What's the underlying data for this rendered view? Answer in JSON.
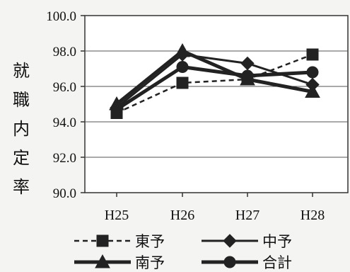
{
  "chart_data": {
    "type": "line",
    "ylabel": "就職内定率",
    "categories": [
      "H25",
      "H26",
      "H27",
      "H28"
    ],
    "ylim": [
      90.0,
      100.0
    ],
    "yticks": [
      "100.0",
      "98.0",
      "96.0",
      "94.0",
      "92.0",
      "90.0"
    ],
    "grid": true,
    "legend_placement": "bottom",
    "series": [
      {
        "name": "東予",
        "values": [
          94.5,
          96.2,
          96.4,
          97.8
        ],
        "marker": "square",
        "line": "dashed",
        "color": "#222222"
      },
      {
        "name": "中予",
        "values": [
          94.8,
          97.8,
          97.3,
          96.1
        ],
        "marker": "diamond",
        "line": "solid",
        "color": "#222222"
      },
      {
        "name": "南予",
        "values": [
          95.0,
          98.0,
          96.4,
          95.7
        ],
        "marker": "triangle",
        "line": "solid-thick",
        "color": "#222222"
      },
      {
        "name": "合計",
        "values": [
          94.7,
          97.1,
          96.6,
          96.8
        ],
        "marker": "circle",
        "line": "solid-thick",
        "color": "#222222"
      }
    ]
  }
}
